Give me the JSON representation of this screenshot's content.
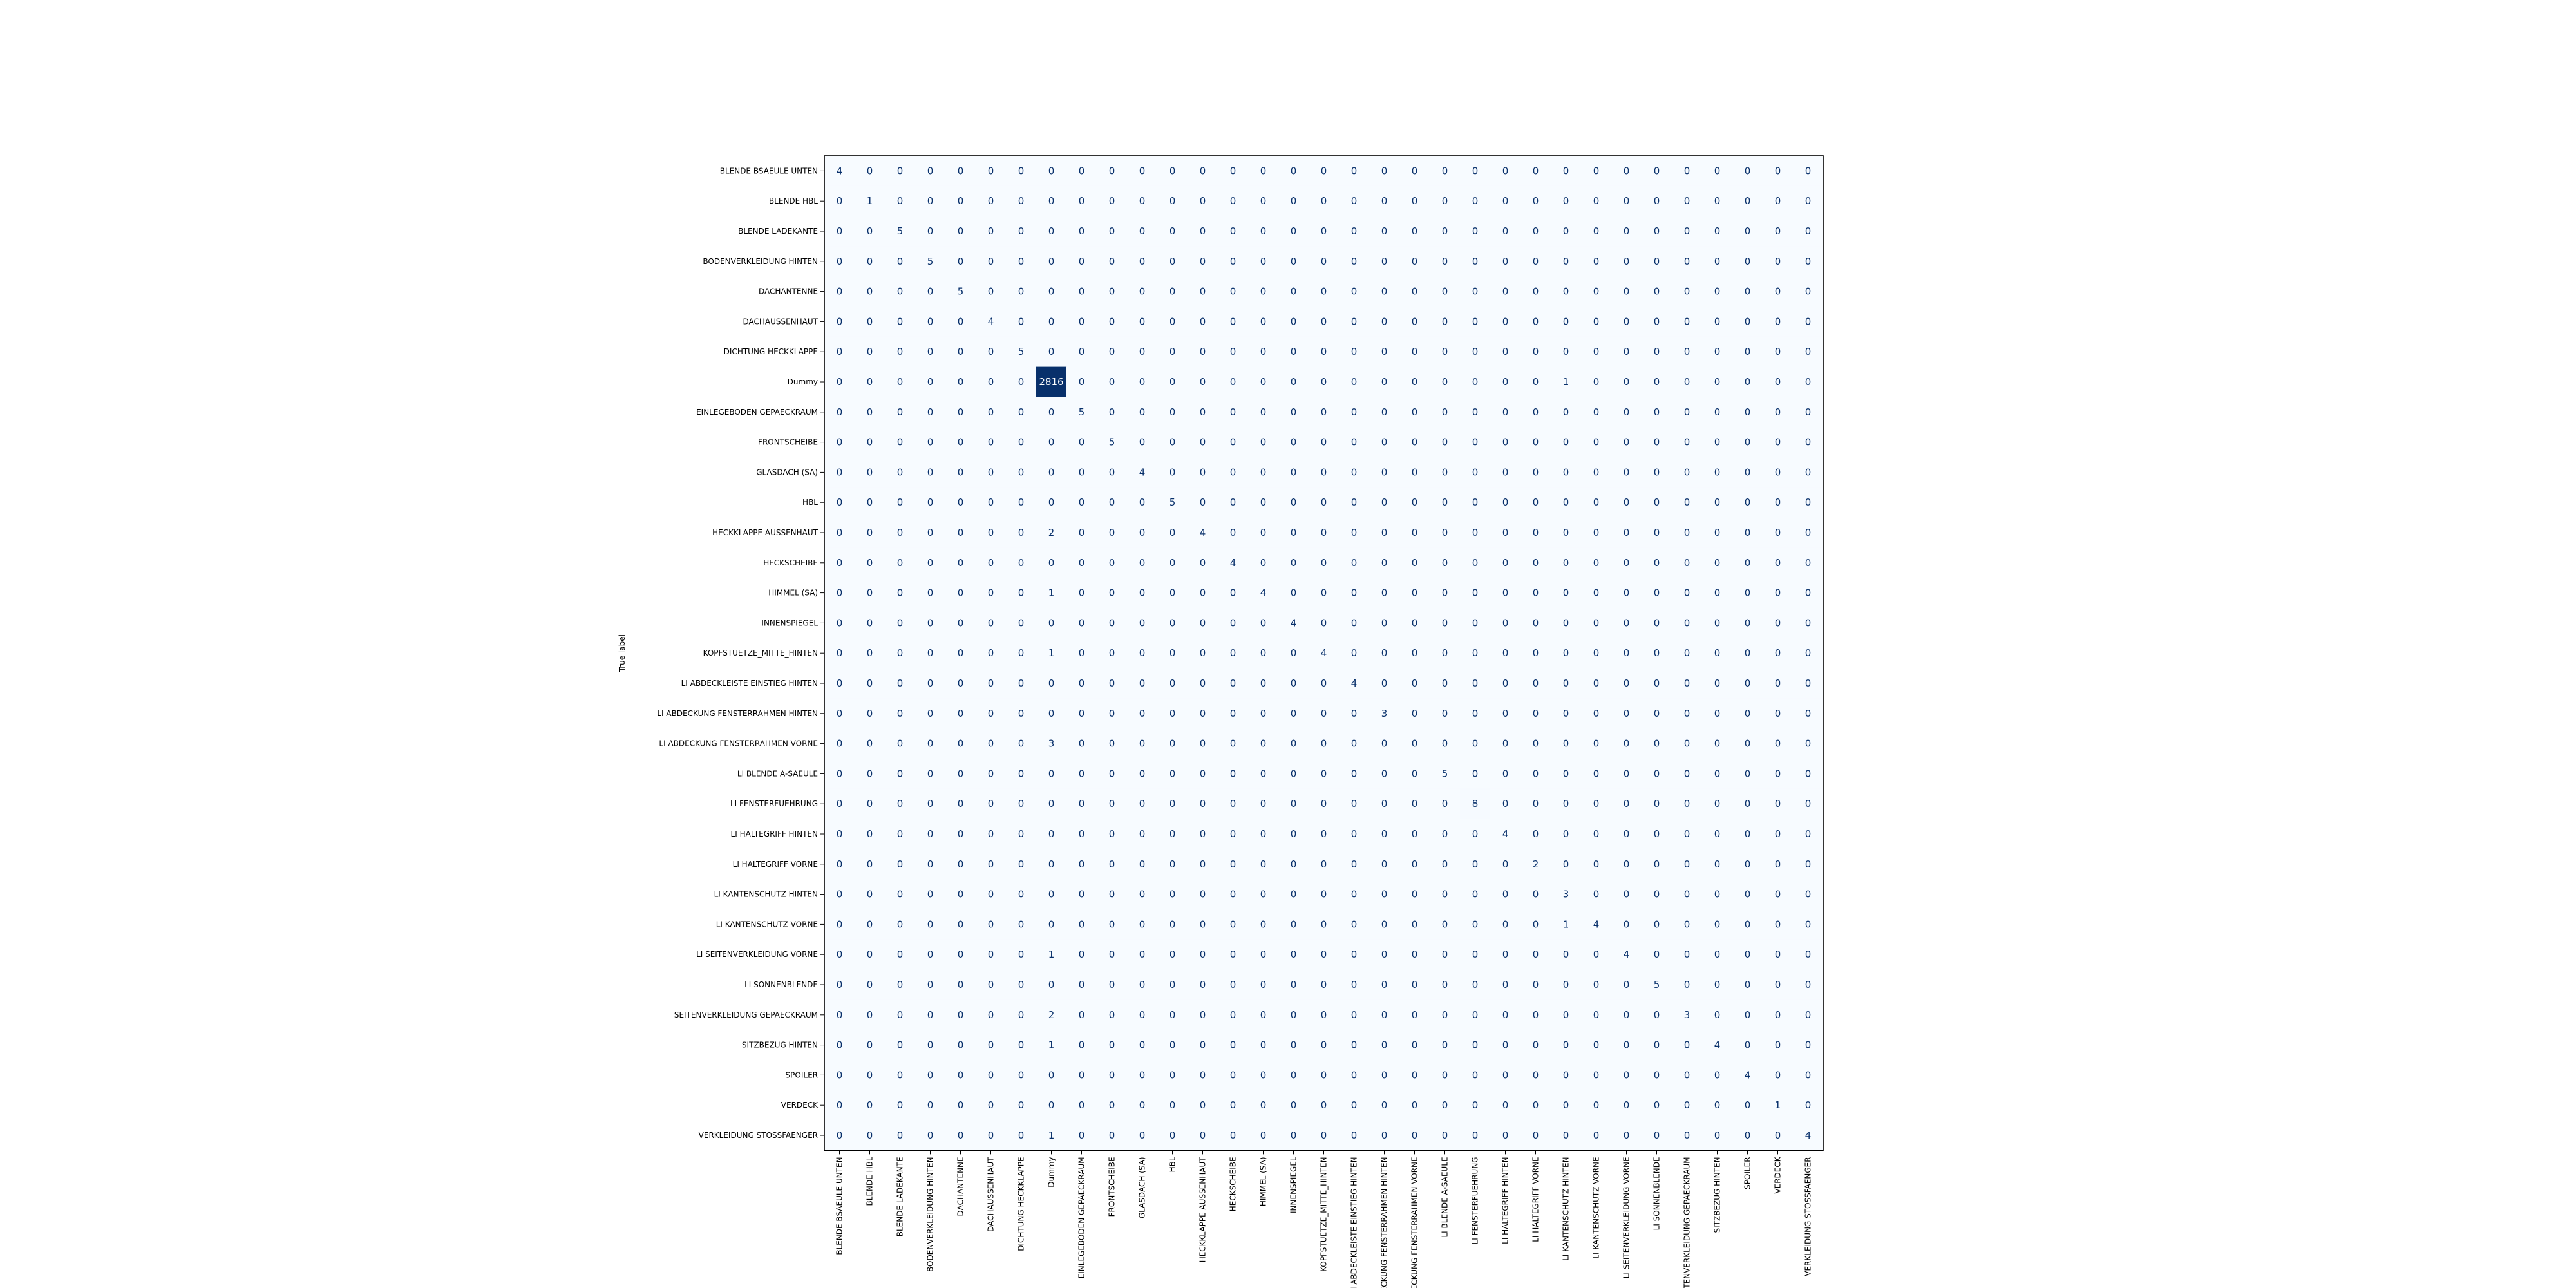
{
  "chart_data": {
    "type": "heatmap",
    "title": "",
    "xlabel": "",
    "ylabel": "True label",
    "color_low": "#f7fbff",
    "color_high": "#08306b",
    "cell_text_dark": "#08306b",
    "cell_text_light": "#ffffff",
    "vmin": 0,
    "vmax": 2816,
    "row_labels": [
      "BLENDE BSAEULE UNTEN",
      "BLENDE HBL",
      "BLENDE LADEKANTE",
      "BODENVERKLEIDUNG HINTEN",
      "DACHANTENNE",
      "DACHAUSSENHAUT",
      "DICHTUNG HECKKLAPPE",
      "Dummy",
      "EINLEGEBODEN GEPAECKRAUM",
      "FRONTSCHEIBE",
      "GLASDACH (SA)",
      "HBL",
      "HECKKLAPPE AUSSENHAUT",
      "HECKSCHEIBE",
      "HIMMEL (SA)",
      "INNENSPIEGEL",
      "KOPFSTUETZE_MITTE_HINTEN",
      "LI ABDECKLEISTE EINSTIEG HINTEN",
      "LI ABDECKUNG FENSTERRAHMEN HINTEN",
      "LI ABDECKUNG FENSTERRAHMEN VORNE",
      "LI BLENDE A-SAEULE",
      "LI FENSTERFUEHRUNG",
      "LI HALTEGRIFF HINTEN",
      "LI HALTEGRIFF VORNE",
      "LI KANTENSCHUTZ HINTEN",
      "LI KANTENSCHUTZ VORNE",
      "LI SEITENVERKLEIDUNG VORNE",
      "LI SONNENBLENDE",
      "SEITENVERKLEIDUNG GEPAECKRAUM",
      "SITZBEZUG HINTEN",
      "SPOILER",
      "VERDECK",
      "VERKLEIDUNG STOSSFAENGER"
    ],
    "col_labels": [
      "BLENDE BSAEULE UNTEN",
      "BLENDE HBL",
      "BLENDE LADEKANTE",
      "BODENVERKLEIDUNG HINTEN",
      "DACHANTENNE",
      "DACHAUSSENHAUT",
      "DICHTUNG HECKKLAPPE",
      "Dummy",
      "EINLEGEBODEN GEPAECKRAUM",
      "FRONTSCHEIBE",
      "GLASDACH (SA)",
      "HBL",
      "HECKKLAPPE AUSSENHAUT",
      "HECKSCHEIBE",
      "HIMMEL (SA)",
      "INNENSPIEGEL",
      "KOPFSTUETZE_MITTE_HINTEN",
      "LI ABDECKLEISTE EINSTIEG HINTEN",
      "LI ABDECKUNG FENSTERRAHMEN HINTEN",
      "LI ABDECKUNG FENSTERRAHMEN VORNE",
      "LI BLENDE A-SAEULE",
      "LI FENSTERFUEHRUNG",
      "LI HALTEGRIFF HINTEN",
      "LI HALTEGRIFF VORNE",
      "LI KANTENSCHUTZ HINTEN",
      "LI KANTENSCHUTZ VORNE",
      "LI SEITENVERKLEIDUNG VORNE",
      "LI SONNENBLENDE",
      "SEITENVERKLEIDUNG GEPAECKRAUM",
      "SITZBEZUG HINTEN",
      "SPOILER",
      "VERDECK",
      "VERKLEIDUNG STOSSFAENGER"
    ],
    "nonzero_cells": [
      [
        0,
        0,
        4
      ],
      [
        1,
        1,
        1
      ],
      [
        2,
        2,
        5
      ],
      [
        3,
        3,
        5
      ],
      [
        4,
        4,
        5
      ],
      [
        5,
        5,
        4
      ],
      [
        6,
        6,
        5
      ],
      [
        7,
        7,
        2816
      ],
      [
        7,
        24,
        1
      ],
      [
        8,
        8,
        5
      ],
      [
        9,
        9,
        5
      ],
      [
        10,
        10,
        4
      ],
      [
        11,
        11,
        5
      ],
      [
        12,
        7,
        2
      ],
      [
        12,
        12,
        4
      ],
      [
        13,
        13,
        4
      ],
      [
        14,
        7,
        1
      ],
      [
        14,
        14,
        4
      ],
      [
        15,
        15,
        4
      ],
      [
        16,
        7,
        1
      ],
      [
        16,
        16,
        4
      ],
      [
        17,
        17,
        4
      ],
      [
        18,
        18,
        3
      ],
      [
        19,
        7,
        3
      ],
      [
        20,
        20,
        5
      ],
      [
        21,
        21,
        8
      ],
      [
        22,
        22,
        4
      ],
      [
        23,
        23,
        2
      ],
      [
        24,
        24,
        3
      ],
      [
        25,
        24,
        1
      ],
      [
        25,
        25,
        4
      ],
      [
        26,
        7,
        1
      ],
      [
        26,
        26,
        4
      ],
      [
        27,
        27,
        5
      ],
      [
        28,
        7,
        2
      ],
      [
        28,
        28,
        3
      ],
      [
        29,
        7,
        1
      ],
      [
        29,
        29,
        4
      ],
      [
        30,
        30,
        4
      ],
      [
        31,
        31,
        1
      ],
      [
        32,
        7,
        1
      ],
      [
        32,
        32,
        4
      ]
    ]
  }
}
